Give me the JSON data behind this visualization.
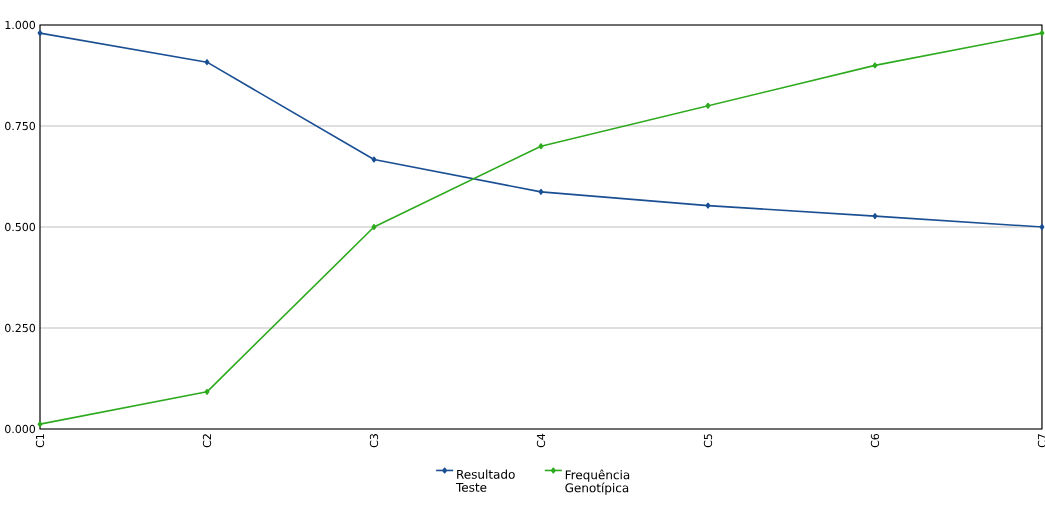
{
  "chart_data": {
    "type": "line",
    "categories": [
      "C1",
      "C2",
      "C3",
      "C4",
      "C5",
      "C6",
      "C7"
    ],
    "series": [
      {
        "name": "Resultado Teste",
        "color": "#1b4f93",
        "values": [
          0.98,
          0.908,
          0.667,
          0.587,
          0.553,
          0.527,
          0.5
        ]
      },
      {
        "name": "Frequência Genotípica",
        "color": "#2eaa1e",
        "values": [
          0.012,
          0.092,
          0.5,
          0.7,
          0.8,
          0.9,
          0.98
        ]
      }
    ],
    "ylim": [
      0,
      1
    ],
    "yticks": [
      {
        "value": 0,
        "label": "0.000"
      },
      {
        "value": 0.25,
        "label": "0.250"
      },
      {
        "value": 0.5,
        "label": "0.500"
      },
      {
        "value": 0.75,
        "label": "0.750"
      },
      {
        "value": 1,
        "label": "1.000"
      }
    ],
    "grid": "y",
    "legend": "bottom",
    "marker": "diamond",
    "line_style": "solid"
  }
}
